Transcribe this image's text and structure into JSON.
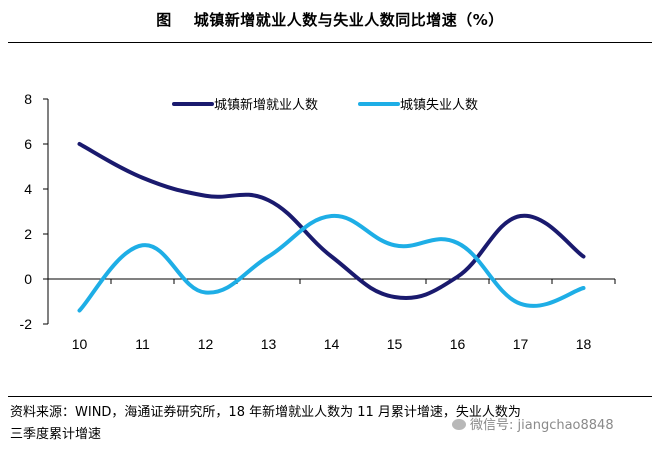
{
  "title": {
    "figure_label": "图",
    "text": "城镇新增就业人数与失业人数同比增速（%）"
  },
  "chart_data": {
    "type": "line",
    "x": [
      10,
      11,
      12,
      13,
      14,
      15,
      16,
      17,
      18
    ],
    "ylim": [
      -2,
      8
    ],
    "yticks": [
      -2,
      0,
      2,
      4,
      6,
      8
    ],
    "grid": false,
    "legend_position": "top",
    "series": [
      {
        "name": "城镇新增就业人数",
        "color": "#1a1a6e",
        "values": [
          6.0,
          4.5,
          3.7,
          3.5,
          1.0,
          -0.8,
          0.1,
          2.8,
          1.0
        ]
      },
      {
        "name": "城镇失业人数",
        "color": "#1eaee6",
        "values": [
          -1.4,
          1.5,
          -0.6,
          1.0,
          2.8,
          1.5,
          1.6,
          -1.1,
          -0.4
        ]
      }
    ]
  },
  "footnote": {
    "line1": "资料来源：WIND，海通证券研究所，18 年新增就业人数为 11 月累计增速，失业人数为",
    "line2": "三季度累计增速"
  },
  "watermark": {
    "text": "微信号: jiangchao8848"
  }
}
